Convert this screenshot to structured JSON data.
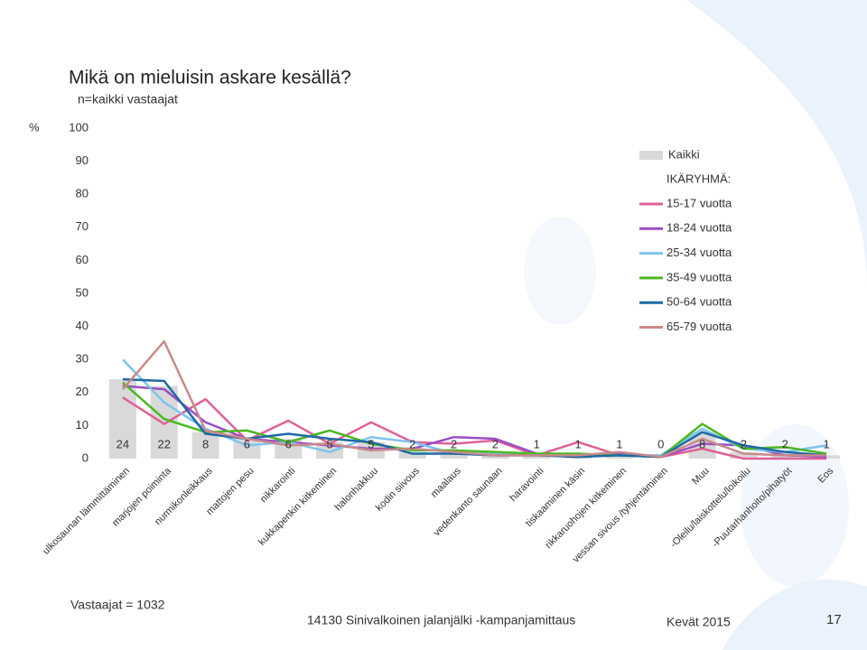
{
  "chart_data": {
    "type": "combo",
    "title": "Mikä on mieluisin askare kesällä?",
    "subtitle": "n=kaikki vastaajat",
    "y_label": "%",
    "legend_title": "IKÄRYHMÄ:",
    "categories": [
      "ulkosaunan lämmittäminen",
      "marjojen poiminta",
      "nurmikonleikkaus",
      "mattojen pesu",
      "nikkarointi",
      "kukkapenkin kitkeminen",
      "halonhakkuu",
      "kodin siivous",
      "maalaus",
      "vedenkanto saunaan",
      "haravointi",
      "tiskaaminen käsin",
      "rikkaruohojen kitkeminen",
      "vessan sivous /tyhjentäminen",
      "Muu",
      "-Oleilu/laiskottelu/loikoilu",
      "-Puutarhanhoito/pihatyöt",
      "Eos"
    ],
    "series": [
      {
        "name": "Kaikki",
        "type": "bar",
        "color": "#d9d9d9",
        "values": [
          24,
          22,
          8,
          6,
          6,
          5,
          5,
          2,
          2,
          2,
          1,
          1,
          1,
          0,
          8,
          2,
          2,
          1
        ]
      },
      {
        "name": "15-17 vuotta",
        "type": "line",
        "color": "#e0609a",
        "values": [
          18.5,
          10.5,
          18,
          5.5,
          11.5,
          4.5,
          11,
          5,
          4.5,
          5.5,
          1,
          5,
          1,
          0.5,
          3,
          0,
          0,
          0
        ]
      },
      {
        "name": "18-24 vuotta",
        "type": "line",
        "color": "#9b4fc3",
        "values": [
          22,
          21,
          11,
          6,
          5,
          4,
          3,
          3,
          6.5,
          6,
          1.5,
          1,
          1.5,
          0.5,
          4.5,
          4,
          1,
          0.5
        ]
      },
      {
        "name": "25-34 vuotta",
        "type": "line",
        "color": "#7ec4ec",
        "values": [
          30,
          17,
          9,
          4,
          5,
          2,
          6.5,
          5,
          1.5,
          1.5,
          1,
          1,
          1,
          1,
          9,
          3,
          2,
          4
        ]
      },
      {
        "name": "35-49 vuotta",
        "type": "line",
        "color": "#4cb822",
        "values": [
          23,
          12,
          8,
          8.5,
          5,
          8.5,
          4.5,
          2.5,
          2.5,
          2,
          1.5,
          1.5,
          1,
          0.5,
          10.5,
          3,
          3.5,
          1.5
        ]
      },
      {
        "name": "50-64 vuotta",
        "type": "line",
        "color": "#1f6aa5",
        "values": [
          24,
          23.5,
          7.5,
          6,
          7.5,
          6,
          5,
          1.5,
          1.5,
          1,
          1,
          0.5,
          1,
          0.5,
          8,
          4,
          2,
          1
        ]
      },
      {
        "name": "65-79 vuotta",
        "type": "line",
        "color": "#c98a8a",
        "values": [
          21,
          35.5,
          8.5,
          6,
          4,
          4.5,
          2.5,
          3,
          2,
          1,
          1,
          1,
          2,
          0.5,
          6,
          1.5,
          1,
          1
        ]
      }
    ],
    "ylim": [
      0,
      100
    ],
    "yticks": [
      0,
      10,
      20,
      30,
      40,
      50,
      60,
      70,
      80,
      90,
      100
    ],
    "footer": {
      "respondents": "Vastaajat = 1032",
      "project": "14130 Sinivalkoinen jalanjälki -kampanjamittaus",
      "date": "Kevät 2015",
      "page": "17"
    }
  }
}
